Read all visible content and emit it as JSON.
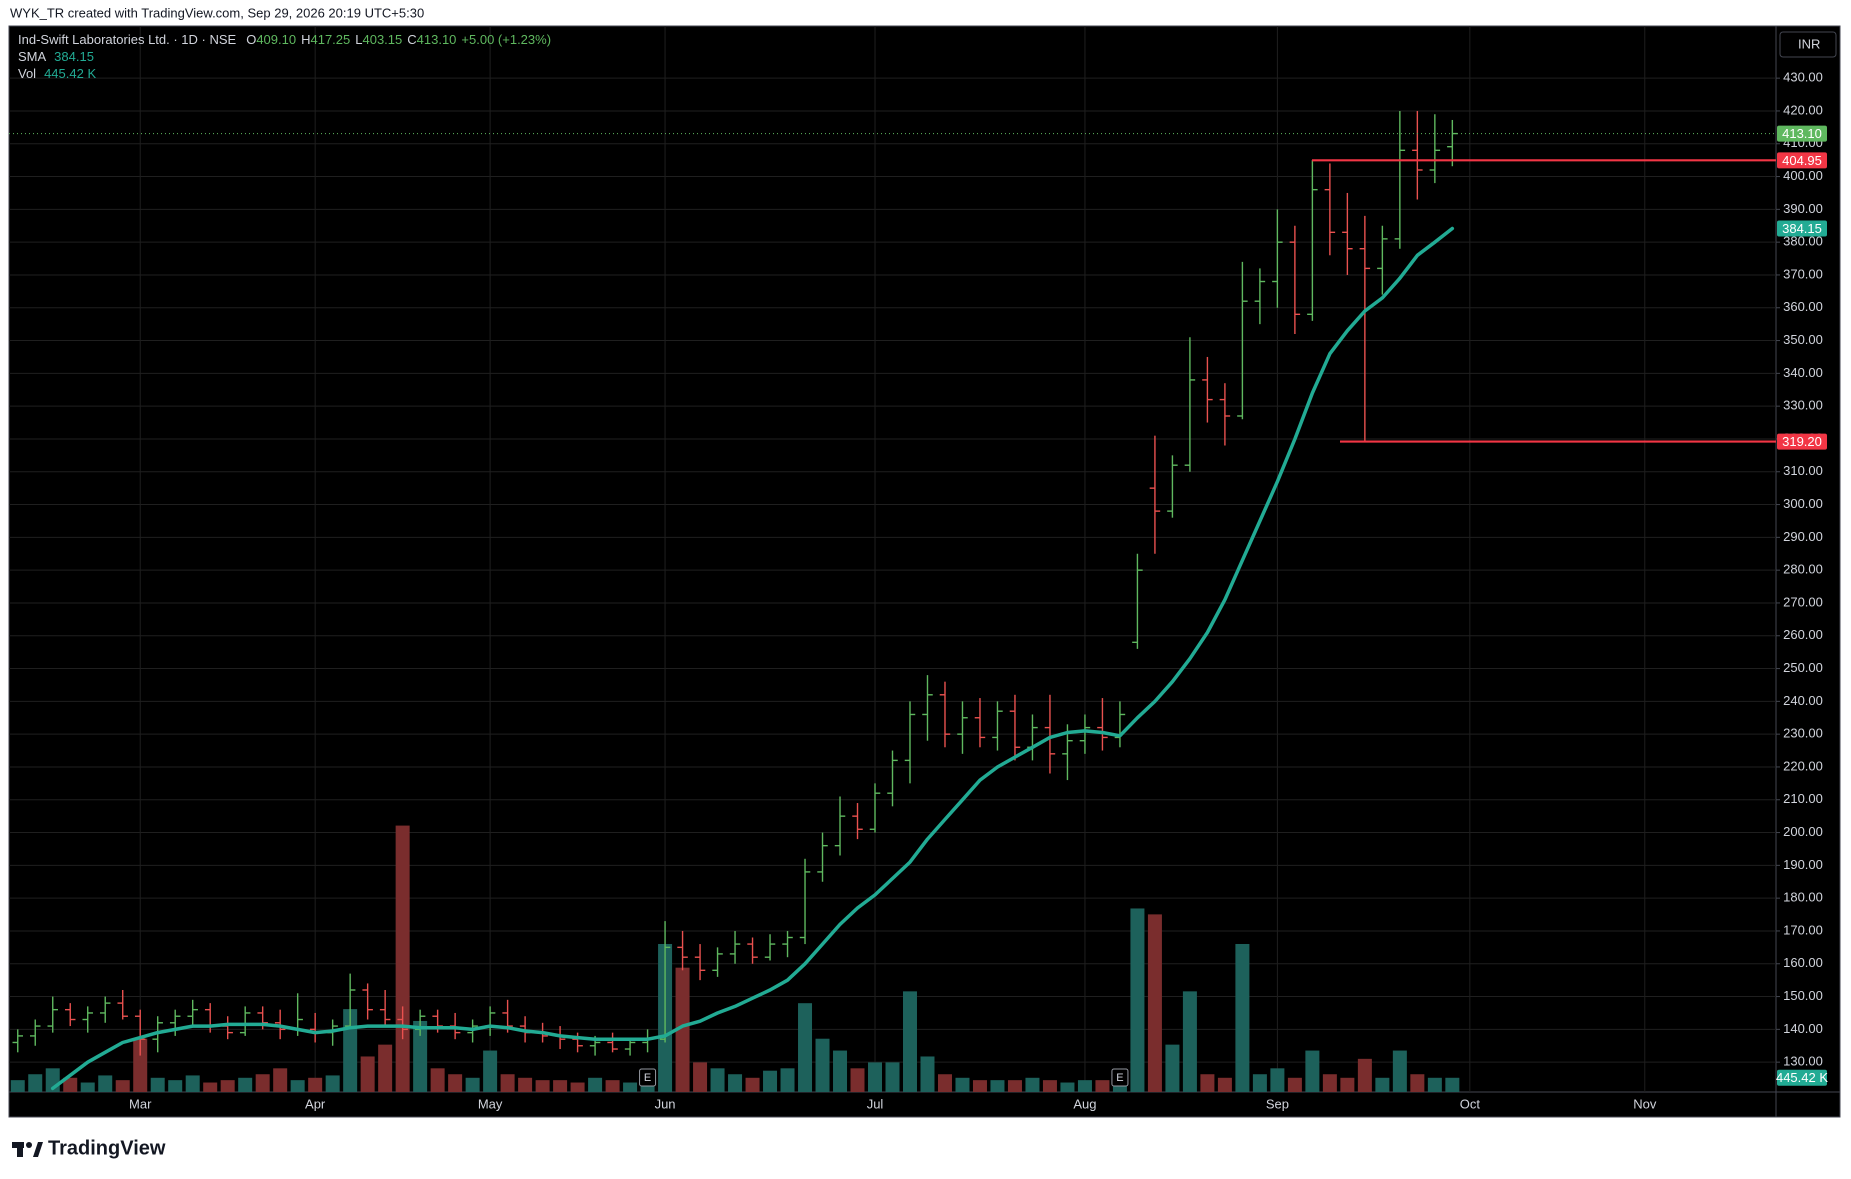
{
  "credit": "WYK_TR created with TradingView.com, Sep 29, 2026 20:19 UTC+5:30",
  "footer": {
    "brand": "TradingView"
  },
  "chart_data": {
    "type": "ohlc",
    "title": "Ind-Swift Laboratories Ltd. · 1D · NSE",
    "currency": "INR",
    "header": [
      {
        "key": "O",
        "value": "409.10"
      },
      {
        "key": "H",
        "value": "417.25"
      },
      {
        "key": "L",
        "value": "403.15"
      },
      {
        "key": "C",
        "value": "413.10"
      }
    ],
    "change": "+5.00 (+1.23%)",
    "background": "#000000",
    "grid": true,
    "grid_color": "#1f1f1f",
    "up_color": "#5fb85f",
    "down_color": "#e9514f",
    "vol_up_color": "#1d615b",
    "vol_down_color": "#7a2d2d",
    "categories": [
      null,
      null,
      null,
      null,
      null,
      null,
      null,
      "Mar",
      null,
      null,
      null,
      null,
      null,
      null,
      null,
      null,
      null,
      "Apr",
      null,
      null,
      null,
      null,
      null,
      null,
      null,
      null,
      null,
      "May",
      null,
      null,
      null,
      null,
      null,
      null,
      null,
      null,
      null,
      "Jun",
      null,
      null,
      null,
      null,
      null,
      null,
      null,
      null,
      null,
      null,
      null,
      "Jul",
      null,
      null,
      null,
      null,
      null,
      null,
      null,
      null,
      null,
      null,
      null,
      "Aug",
      null,
      null,
      null,
      null,
      null,
      null,
      null,
      null,
      null,
      null,
      "Sep",
      null,
      null,
      null,
      null,
      null,
      null,
      null,
      null,
      null,
      null,
      "Oct",
      null,
      null,
      null,
      null,
      null,
      null,
      null,
      null,
      null,
      "Nov",
      null,
      null,
      null,
      null,
      null,
      null,
      null
    ],
    "open": [
      136,
      138,
      141,
      146,
      143,
      145,
      148,
      144,
      137,
      142,
      144,
      146,
      141,
      139,
      145,
      142,
      140,
      140,
      139,
      141,
      152,
      146,
      143,
      140,
      144,
      141,
      139,
      141,
      145,
      141,
      139,
      138,
      137,
      135,
      136,
      134,
      136,
      137,
      165,
      162,
      158,
      163,
      166,
      162,
      166,
      168,
      188,
      196,
      205,
      201,
      212,
      222,
      236,
      242,
      230,
      235,
      229,
      237,
      226,
      232,
      224,
      228,
      232,
      229,
      258,
      305,
      298,
      312,
      338,
      332,
      327,
      362,
      368,
      380,
      358,
      396,
      383,
      378,
      372,
      381,
      408,
      402,
      409.1,
      null,
      null,
      null,
      null,
      null,
      null,
      null,
      null,
      null,
      null,
      null,
      null,
      null,
      null,
      null,
      null,
      null,
      null
    ],
    "high": [
      140,
      143,
      150,
      148,
      147,
      150,
      152,
      146,
      144,
      146,
      149,
      148,
      144,
      147,
      147,
      146,
      151,
      145,
      143,
      157,
      154,
      152,
      147,
      146,
      146,
      145,
      143,
      147,
      149,
      144,
      142,
      141,
      139,
      138,
      139,
      137,
      140,
      173,
      170,
      166,
      165,
      170,
      168,
      169,
      170,
      192,
      200,
      211,
      209,
      215,
      225,
      240,
      248,
      246,
      240,
      241,
      240,
      242,
      236,
      242,
      233,
      236,
      241,
      240,
      285,
      321,
      315,
      351,
      345,
      337,
      374,
      372,
      390,
      385,
      405,
      404,
      395,
      388,
      385,
      420,
      420,
      419,
      417.25,
      null,
      null,
      null,
      null,
      null,
      null,
      null,
      null,
      null,
      null,
      null,
      null,
      null,
      null,
      null,
      null,
      null,
      null
    ],
    "low": [
      133,
      135,
      139,
      141,
      139,
      142,
      143,
      132,
      133,
      138,
      141,
      139,
      137,
      138,
      140,
      137,
      138,
      136,
      135,
      140,
      143,
      141,
      137,
      138,
      139,
      137,
      136,
      138,
      139,
      136,
      136,
      134,
      133,
      132,
      133,
      132,
      133,
      136,
      158,
      155,
      156,
      160,
      160,
      161,
      162,
      166,
      185,
      193,
      198,
      200,
      208,
      215,
      228,
      226,
      224,
      226,
      225,
      222,
      222,
      218,
      216,
      224,
      225,
      226,
      256,
      285,
      296,
      310,
      325,
      318,
      326,
      355,
      360,
      352,
      356,
      376,
      370,
      319,
      364,
      378,
      393,
      398,
      403.15,
      null,
      null,
      null,
      null,
      null,
      null,
      null,
      null,
      null,
      null,
      null,
      null,
      null,
      null,
      null,
      null,
      null,
      null
    ],
    "close": [
      138,
      141,
      146,
      143,
      145,
      148,
      144,
      137,
      142,
      144,
      146,
      141,
      139,
      145,
      142,
      140,
      143,
      139,
      141,
      152,
      146,
      143,
      140,
      144,
      141,
      139,
      141,
      145,
      141,
      139,
      138,
      137,
      135,
      136,
      134,
      136,
      137,
      165,
      162,
      158,
      163,
      166,
      162,
      166,
      168,
      188,
      196,
      205,
      201,
      212,
      222,
      236,
      242,
      230,
      235,
      229,
      237,
      226,
      232,
      224,
      228,
      232,
      229,
      236,
      280,
      298,
      312,
      338,
      332,
      327,
      362,
      368,
      380,
      358,
      396,
      383,
      378,
      372,
      381,
      408,
      402,
      408,
      413.1,
      null,
      null,
      null,
      null,
      null,
      null,
      null,
      null,
      null,
      null,
      null,
      null,
      null,
      null,
      null,
      null,
      null,
      null
    ],
    "sma": {
      "name": "SMA",
      "color": "#22ab94",
      "last_label": "384.15",
      "values": [
        null,
        null,
        122,
        126,
        130,
        133,
        136,
        137.5,
        139,
        140,
        141,
        141,
        141.5,
        141.5,
        141.5,
        141,
        140,
        139,
        139.5,
        140.5,
        141,
        141,
        141,
        140.5,
        140.5,
        140.5,
        140,
        141,
        140.5,
        139.5,
        139,
        138,
        137.5,
        137,
        137,
        137,
        137,
        138,
        141,
        142.5,
        145,
        147,
        149.5,
        152,
        155,
        160,
        166,
        172,
        177,
        181,
        186,
        191,
        198,
        204,
        210,
        216,
        220,
        223,
        226,
        229,
        230.5,
        231,
        230.5,
        229.5,
        235,
        240,
        246,
        253,
        261,
        271,
        283,
        295,
        307,
        320,
        334,
        346,
        353,
        359,
        363,
        369,
        376,
        380,
        384.15,
        null,
        null,
        null,
        null,
        null,
        null,
        null,
        null,
        null,
        null,
        null,
        null,
        null,
        null,
        null,
        null,
        null,
        null
      ]
    },
    "volume": {
      "name": "Vol",
      "color": "#22ab94",
      "last_label": "445.42 K",
      "vlim": [
        0,
        33400000
      ],
      "values": [
        371000,
        556500,
        742000,
        445200,
        296800,
        519400,
        371000,
        1669500,
        445200,
        371000,
        519400,
        296800,
        371000,
        445200,
        556500,
        742000,
        371000,
        445200,
        519400,
        2597000,
        1113000,
        1484000,
        8347500,
        2226000,
        742000,
        556500,
        445200,
        1298500,
        556500,
        445200,
        371000,
        371000,
        296800,
        445200,
        371000,
        296800,
        556500,
        4637500,
        3895500,
        927500,
        742000,
        556500,
        445200,
        667800,
        742000,
        2782500,
        1669500,
        1298500,
        742000,
        927500,
        927500,
        3153500,
        1113000,
        556500,
        445200,
        371000,
        371000,
        371000,
        445200,
        371000,
        296800,
        371000,
        371000,
        296800,
        5750500,
        5565000,
        1484000,
        3153500,
        556500,
        445200,
        4637500,
        556500,
        742000,
        445200,
        1298500,
        556500,
        445200,
        1038800,
        445200,
        1298500,
        556500,
        445200,
        445420,
        null,
        null,
        null,
        null,
        null,
        null,
        null,
        null,
        null,
        null,
        null,
        null,
        null,
        null,
        null,
        null,
        null,
        null
      ]
    },
    "last_price": {
      "color": "#5fb85f"
    },
    "hlines": [
      {
        "value": 404.95,
        "label": "404.95",
        "color": "#f23645"
      },
      {
        "value": 319.2,
        "label": "319.20",
        "color": "#f23645"
      }
    ],
    "events": [
      {
        "index": 36,
        "label": "E"
      },
      {
        "index": 63,
        "label": "E"
      }
    ],
    "ylim": [
      120.9,
      445.9
    ],
    "yticks": [
      {
        "value": 130,
        "label": "130.00"
      },
      {
        "value": 140,
        "label": "140.00"
      },
      {
        "value": 150,
        "label": "150.00"
      },
      {
        "value": 160,
        "label": "160.00"
      },
      {
        "value": 170,
        "label": "170.00"
      },
      {
        "value": 180,
        "label": "180.00"
      },
      {
        "value": 190,
        "label": "190.00"
      },
      {
        "value": 200,
        "label": "200.00"
      },
      {
        "value": 210,
        "label": "210.00"
      },
      {
        "value": 220,
        "label": "220.00"
      },
      {
        "value": 230,
        "label": "230.00"
      },
      {
        "value": 240,
        "label": "240.00"
      },
      {
        "value": 250,
        "label": "250.00"
      },
      {
        "value": 260,
        "label": "260.00"
      },
      {
        "value": 270,
        "label": "270.00"
      },
      {
        "value": 280,
        "label": "280.00"
      },
      {
        "value": 290,
        "label": "290.00"
      },
      {
        "value": 300,
        "label": "300.00"
      },
      {
        "value": 310,
        "label": "310.00"
      },
      {
        "value": 320,
        "label": "320.00"
      },
      {
        "value": 330,
        "label": "330.00"
      },
      {
        "value": 340,
        "label": "340.00"
      },
      {
        "value": 350,
        "label": "350.00"
      },
      {
        "value": 360,
        "label": "360.00"
      },
      {
        "value": 370,
        "label": "370.00"
      },
      {
        "value": 380,
        "label": "380.00"
      },
      {
        "value": 390,
        "label": "390.00"
      },
      {
        "value": 400,
        "label": "400.00"
      },
      {
        "value": 410,
        "label": "410.00"
      },
      {
        "value": 420,
        "label": "420.00"
      },
      {
        "value": 430,
        "label": "430.00"
      }
    ]
  }
}
